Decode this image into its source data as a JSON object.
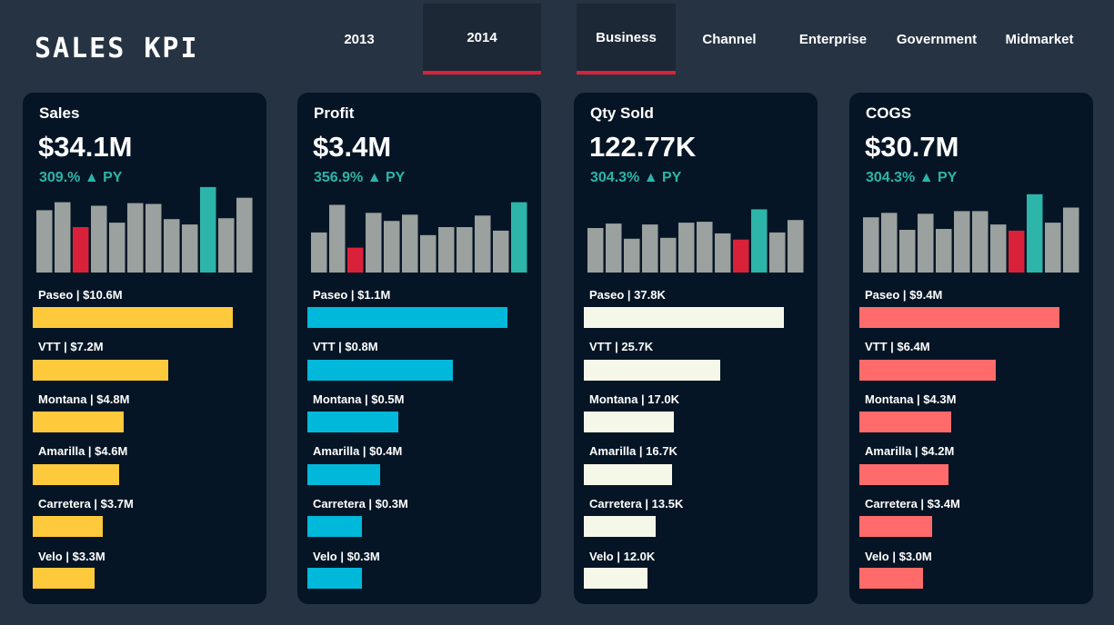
{
  "page_title": "SALES KPI",
  "year_tabs": [
    {
      "label": "2013",
      "active": false
    },
    {
      "label": "2014",
      "active": true
    }
  ],
  "segment_tabs": [
    {
      "label": "Business",
      "active": true
    },
    {
      "label": "Channel",
      "active": false
    },
    {
      "label": "Enterprise",
      "active": false
    },
    {
      "label": "Government",
      "active": false
    },
    {
      "label": "Midmarket",
      "active": false
    }
  ],
  "colors": {
    "sparkline_default": "#9aa19e",
    "sparkline_min": "#d9223a",
    "sparkline_max": "#2cb5a8",
    "change_positive": "#2cb5a8",
    "tab_active_underline": "#d9223a"
  },
  "cards": [
    {
      "title": "Sales",
      "value": "$34.1M",
      "change": "309.% ▲ PY",
      "bar_color": "#ffc93c",
      "sparkline": {
        "values": [
          70,
          79,
          51,
          75,
          56,
          78,
          77,
          60,
          54,
          96,
          61,
          84
        ],
        "min_index": 2,
        "max_index": 9
      },
      "products": [
        {
          "label": "Paseo | $10.6M",
          "value": 10.6
        },
        {
          "label": "VTT | $7.2M",
          "value": 7.2
        },
        {
          "label": "Montana | $4.8M",
          "value": 4.8
        },
        {
          "label": "Amarilla | $4.6M",
          "value": 4.6
        },
        {
          "label": "Carretera | $3.7M",
          "value": 3.7
        },
        {
          "label": "Velo | $3.3M",
          "value": 3.3
        }
      ]
    },
    {
      "title": "Profit",
      "value": "$3.4M",
      "change": "356.9% ▲ PY",
      "bar_color": "#00b8d9",
      "sparkline": {
        "values": [
          45,
          76,
          28,
          67,
          58,
          65,
          42,
          51,
          51,
          64,
          47,
          79
        ],
        "min_index": 2,
        "max_index": 11
      },
      "products": [
        {
          "label": "Paseo | $1.1M",
          "value": 1.1
        },
        {
          "label": "VTT | $0.8M",
          "value": 0.8
        },
        {
          "label": "Montana | $0.5M",
          "value": 0.5
        },
        {
          "label": "Amarilla | $0.4M",
          "value": 0.4
        },
        {
          "label": "Carretera | $0.3M",
          "value": 0.3
        },
        {
          "label": "Velo | $0.3M",
          "value": 0.3
        }
      ]
    },
    {
      "title": "Qty Sold",
      "value": "122.77K",
      "change": "304.3% ▲ PY",
      "bar_color": "#f5f8e8",
      "sparkline": {
        "values": [
          50,
          55,
          38,
          54,
          39,
          56,
          57,
          44,
          37,
          71,
          45,
          59
        ],
        "min_index": 8,
        "max_index": 9
      },
      "products": [
        {
          "label": "Paseo | 37.8K",
          "value": 37.8
        },
        {
          "label": "VTT | 25.7K",
          "value": 25.7
        },
        {
          "label": "Montana | 17.0K",
          "value": 17.0
        },
        {
          "label": "Amarilla | 16.7K",
          "value": 16.7
        },
        {
          "label": "Carretera | 13.5K",
          "value": 13.5
        },
        {
          "label": "Velo | 12.0K",
          "value": 12.0
        }
      ]
    },
    {
      "title": "COGS",
      "value": "$30.7M",
      "change": "304.3% ▲ PY",
      "bar_color": "#ff6b6b",
      "sparkline": {
        "values": [
          62,
          67,
          48,
          66,
          49,
          69,
          69,
          54,
          47,
          88,
          56,
          73
        ],
        "min_index": 8,
        "max_index": 9
      },
      "products": [
        {
          "label": "Paseo | $9.4M",
          "value": 9.4
        },
        {
          "label": "VTT | $6.4M",
          "value": 6.4
        },
        {
          "label": "Montana | $4.3M",
          "value": 4.3
        },
        {
          "label": "Amarilla | $4.2M",
          "value": 4.2
        },
        {
          "label": "Carretera | $3.4M",
          "value": 3.4
        },
        {
          "label": "Velo | $3.0M",
          "value": 3.0
        }
      ]
    }
  ]
}
